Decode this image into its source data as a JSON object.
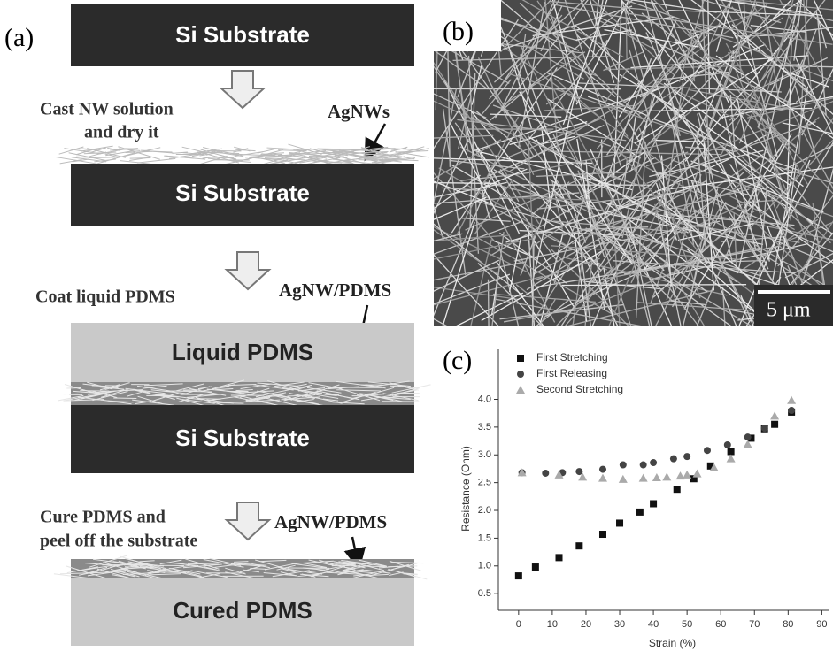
{
  "panel_a": {
    "label": "(a)",
    "substrate_1": "Si Substrate",
    "step_1_line_1": "Cast NW solution",
    "step_1_line_2": "and dry it",
    "nw_label_1": "AgNWs",
    "substrate_2": "Si Substrate",
    "step_2": "Coat liquid PDMS",
    "nw_label_2": "AgNW/PDMS",
    "liquid_layer": "Liquid PDMS",
    "substrate_3": "Si Substrate",
    "step_3_line_1": "Cure PDMS and",
    "step_3_line_2": "peel off the substrate",
    "nw_label_3": "AgNW/PDMS",
    "cured_layer": "Cured PDMS"
  },
  "panel_b": {
    "label": "(b)",
    "scale_bar": "5 μm"
  },
  "chart_data": {
    "type": "scatter",
    "label": "(c)",
    "x_label": "Strain (%)",
    "y_label": "Resistance (Ohm)",
    "xlim": [
      -6,
      92
    ],
    "ylim": [
      0.2,
      4.9
    ],
    "xticks": [
      0,
      10,
      20,
      30,
      40,
      50,
      60,
      70,
      80,
      90
    ],
    "yticks": [
      0.5,
      {
        "value": 1,
        "label": "1.0"
      },
      1.5,
      {
        "value": 2,
        "label": "2.0"
      },
      2.5,
      {
        "value": 3,
        "label": "3.0"
      },
      3.5,
      {
        "value": 4,
        "label": "4.0"
      }
    ],
    "legend": "upper left",
    "series": [
      {
        "name": "First Stretching",
        "color": "#111111",
        "marker": "square",
        "x": [
          0,
          5,
          12,
          18,
          25,
          30,
          36,
          40,
          47,
          52,
          57,
          63,
          69,
          73,
          76,
          81
        ],
        "values": [
          0.82,
          0.98,
          1.15,
          1.36,
          1.57,
          1.77,
          1.97,
          2.12,
          2.38,
          2.57,
          2.8,
          3.06,
          3.3,
          3.47,
          3.55,
          3.77
        ]
      },
      {
        "name": "First Releasing",
        "color": "#444444",
        "marker": "circle",
        "x": [
          1,
          8,
          13,
          18,
          25,
          31,
          37,
          40,
          46,
          50,
          56,
          62,
          68,
          73,
          81
        ],
        "values": [
          2.68,
          2.67,
          2.68,
          2.7,
          2.74,
          2.82,
          2.82,
          2.86,
          2.93,
          2.97,
          3.08,
          3.18,
          3.32,
          3.48,
          3.8
        ]
      },
      {
        "name": "Second Stretching",
        "color": "#aaaaaa",
        "marker": "triangle",
        "x": [
          1,
          12,
          19,
          25,
          31,
          37,
          41,
          44,
          48,
          50,
          53,
          58,
          63,
          68,
          76,
          81
        ],
        "values": [
          2.68,
          2.64,
          2.6,
          2.58,
          2.56,
          2.58,
          2.59,
          2.6,
          2.62,
          2.64,
          2.66,
          2.77,
          2.93,
          3.19,
          3.7,
          3.98
        ]
      }
    ]
  }
}
